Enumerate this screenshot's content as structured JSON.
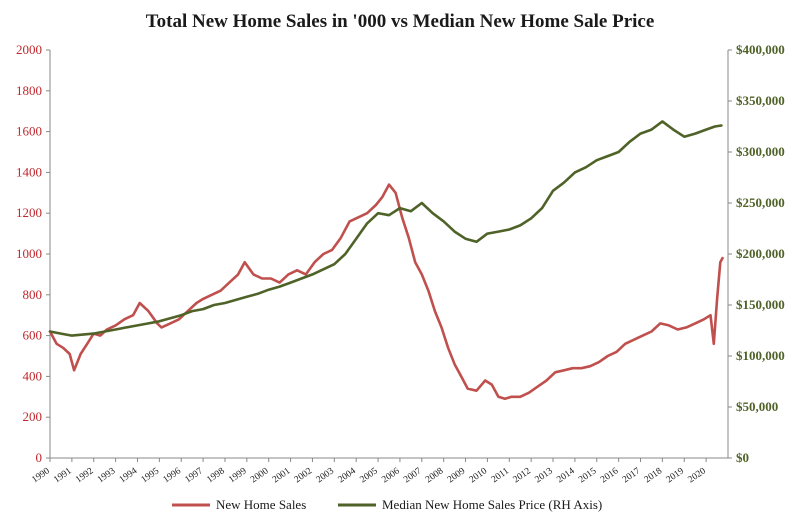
{
  "chart_data": {
    "type": "line",
    "title": "Total New Home Sales in '000 vs Median New Home Sale Price",
    "x_axis": {
      "tick_labels": [
        "1990",
        "1991",
        "1992",
        "1993",
        "1994",
        "1995",
        "1996",
        "1997",
        "1998",
        "1999",
        "2000",
        "2001",
        "2002",
        "2003",
        "2004",
        "2005",
        "2006",
        "2007",
        "2008",
        "2009",
        "2010",
        "2011",
        "2012",
        "2013",
        "2014",
        "2015",
        "2016",
        "2017",
        "2018",
        "2019",
        "2020"
      ],
      "range": [
        1990,
        2021
      ]
    },
    "y_left": {
      "tick_labels": [
        "0",
        "200",
        "400",
        "600",
        "800",
        "1000",
        "1200",
        "1400",
        "1600",
        "1800",
        "2000"
      ],
      "range": [
        0,
        2000
      ],
      "color": "#c0282d"
    },
    "y_right": {
      "tick_labels": [
        "$0",
        "$50,000",
        "$100,000",
        "$150,000",
        "$200,000",
        "$250,000",
        "$300,000",
        "$350,000",
        "$400,000"
      ],
      "range": [
        0,
        400000
      ],
      "color": "#4f6228"
    },
    "grid": false,
    "legend_position": "bottom",
    "series": [
      {
        "name": "New Home Sales",
        "axis": "left",
        "color": "#c0504d",
        "x": [
          1990.0,
          1990.3,
          1990.6,
          1990.9,
          1991.1,
          1991.4,
          1991.7,
          1992.0,
          1992.3,
          1992.6,
          1993.0,
          1993.4,
          1993.8,
          1994.1,
          1994.5,
          1994.9,
          1995.1,
          1995.5,
          1995.9,
          1996.3,
          1996.7,
          1997.0,
          1997.4,
          1997.8,
          1998.2,
          1998.6,
          1998.9,
          1999.3,
          1999.7,
          2000.1,
          2000.5,
          2000.9,
          2001.3,
          2001.7,
          2002.1,
          2002.5,
          2002.9,
          2003.3,
          2003.7,
          2004.1,
          2004.5,
          2004.9,
          2005.2,
          2005.5,
          2005.8,
          2006.1,
          2006.4,
          2006.7,
          2007.0,
          2007.3,
          2007.6,
          2007.9,
          2008.2,
          2008.5,
          2008.8,
          2009.1,
          2009.5,
          2009.9,
          2010.2,
          2010.5,
          2010.8,
          2011.1,
          2011.5,
          2011.9,
          2012.3,
          2012.7,
          2013.1,
          2013.5,
          2013.9,
          2014.3,
          2014.7,
          2015.1,
          2015.5,
          2015.9,
          2016.3,
          2016.7,
          2017.1,
          2017.5,
          2017.9,
          2018.3,
          2018.7,
          2019.1,
          2019.5,
          2019.9,
          2020.2,
          2020.35,
          2020.5,
          2020.65,
          2020.75
        ],
        "y": [
          620,
          560,
          540,
          510,
          430,
          510,
          560,
          610,
          600,
          630,
          650,
          680,
          700,
          760,
          720,
          660,
          640,
          660,
          680,
          720,
          760,
          780,
          800,
          820,
          860,
          900,
          960,
          900,
          880,
          880,
          860,
          900,
          920,
          900,
          960,
          1000,
          1020,
          1080,
          1160,
          1180,
          1200,
          1240,
          1280,
          1340,
          1300,
          1180,
          1080,
          960,
          900,
          820,
          720,
          640,
          540,
          460,
          400,
          340,
          330,
          380,
          360,
          300,
          290,
          300,
          300,
          320,
          350,
          380,
          420,
          430,
          440,
          440,
          450,
          470,
          500,
          520,
          560,
          580,
          600,
          620,
          660,
          650,
          630,
          640,
          660,
          680,
          700,
          560,
          780,
          960,
          980
        ]
      },
      {
        "name": "Median New Home Sales Price (RH Axis)",
        "axis": "right",
        "color": "#4f6228",
        "x": [
          1990.0,
          1990.5,
          1991.0,
          1991.5,
          1992.0,
          1992.5,
          1993.0,
          1993.5,
          1994.0,
          1994.5,
          1995.0,
          1995.5,
          1996.0,
          1996.5,
          1997.0,
          1997.5,
          1998.0,
          1998.5,
          1999.0,
          1999.5,
          2000.0,
          2000.5,
          2001.0,
          2001.5,
          2002.0,
          2002.5,
          2003.0,
          2003.5,
          2004.0,
          2004.5,
          2005.0,
          2005.5,
          2006.0,
          2006.5,
          2007.0,
          2007.5,
          2008.0,
          2008.5,
          2009.0,
          2009.5,
          2010.0,
          2010.5,
          2011.0,
          2011.5,
          2012.0,
          2012.5,
          2013.0,
          2013.5,
          2014.0,
          2014.5,
          2015.0,
          2015.5,
          2016.0,
          2016.5,
          2017.0,
          2017.5,
          2018.0,
          2018.5,
          2019.0,
          2019.5,
          2020.0,
          2020.4,
          2020.7
        ],
        "y": [
          124000,
          122000,
          120000,
          121000,
          122000,
          124000,
          126000,
          128000,
          130000,
          132000,
          134000,
          137000,
          140000,
          144000,
          146000,
          150000,
          152000,
          155000,
          158000,
          161000,
          165000,
          168000,
          172000,
          176000,
          180000,
          185000,
          190000,
          200000,
          215000,
          230000,
          240000,
          238000,
          245000,
          242000,
          250000,
          240000,
          232000,
          222000,
          215000,
          212000,
          220000,
          222000,
          224000,
          228000,
          235000,
          245000,
          262000,
          270000,
          280000,
          285000,
          292000,
          296000,
          300000,
          310000,
          318000,
          322000,
          330000,
          322000,
          315000,
          318000,
          322000,
          325000,
          326000
        ]
      }
    ]
  }
}
